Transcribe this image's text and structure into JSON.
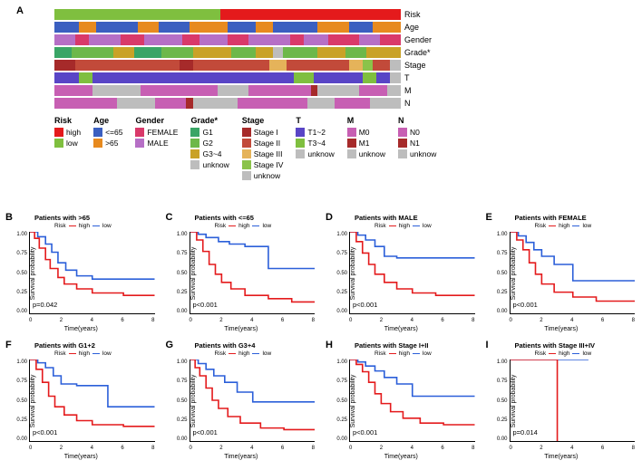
{
  "panelA": {
    "label": "A",
    "trackLabels": [
      "Risk",
      "Age",
      "Gender",
      "Grade*",
      "Stage",
      "T",
      "M",
      "N"
    ],
    "colors": {
      "risk_high": "#e41a1c",
      "risk_low": "#7fbf3f",
      "age_le65": "#3b5fc0",
      "age_gt65": "#e78a1f",
      "gender_f": "#d9396a",
      "gender_m": "#b66fc6",
      "g1": "#3aa566",
      "g2": "#6db84a",
      "g34": "#c9a227",
      "g_unk": "#bdbdbd",
      "stage1": "#a62a2a",
      "stage2": "#c24a3a",
      "stage3": "#e5b35a",
      "stage4": "#8bc34a",
      "stage_unk": "#bdbdbd",
      "t12": "#5945c6",
      "t34": "#7fbf3f",
      "t_unk": "#bdbdbd",
      "m0": "#c75fb3",
      "m1": "#a62a2a",
      "m_unk": "#bdbdbd",
      "n0": "#c75fb3",
      "n1": "#a62a2a",
      "n_unk": "#bdbdbd"
    },
    "legend": [
      {
        "title": "Risk",
        "items": [
          [
            "risk_high",
            "high"
          ],
          [
            "risk_low",
            "low"
          ]
        ]
      },
      {
        "title": "Age",
        "items": [
          [
            "age_le65",
            "<=65"
          ],
          [
            "age_gt65",
            ">65"
          ]
        ]
      },
      {
        "title": "Gender",
        "items": [
          [
            "gender_f",
            "FEMALE"
          ],
          [
            "gender_m",
            "MALE"
          ]
        ]
      },
      {
        "title": "Grade*",
        "items": [
          [
            "g1",
            "G1"
          ],
          [
            "g2",
            "G2"
          ],
          [
            "g34",
            "G3~4"
          ],
          [
            "g_unk",
            "unknow"
          ]
        ]
      },
      {
        "title": "Stage",
        "items": [
          [
            "stage1",
            "Stage I"
          ],
          [
            "stage2",
            "Stage II"
          ],
          [
            "stage3",
            "Stage III"
          ],
          [
            "stage4",
            "Stage IV"
          ],
          [
            "stage_unk",
            "unknow"
          ]
        ]
      },
      {
        "title": "T",
        "items": [
          [
            "t12",
            "T1~2"
          ],
          [
            "t34",
            "T3~4"
          ],
          [
            "t_unk",
            "unknow"
          ]
        ]
      },
      {
        "title": "M",
        "items": [
          [
            "m0",
            "M0"
          ],
          [
            "m1",
            "M1"
          ],
          [
            "m_unk",
            "unknow"
          ]
        ]
      },
      {
        "title": "N",
        "items": [
          [
            "n0",
            "N0"
          ],
          [
            "n1",
            "N1"
          ],
          [
            "n_unk",
            "unknow"
          ]
        ]
      }
    ],
    "tracks": {
      "Risk": [
        [
          "risk_low",
          0.48
        ],
        [
          "risk_high",
          0.52
        ]
      ],
      "Age": [
        [
          "age_le65",
          0.07
        ],
        [
          "age_gt65",
          0.05
        ],
        [
          "age_le65",
          0.12
        ],
        [
          "age_gt65",
          0.06
        ],
        [
          "age_le65",
          0.09
        ],
        [
          "age_gt65",
          0.11
        ],
        [
          "age_le65",
          0.08
        ],
        [
          "age_gt65",
          0.05
        ],
        [
          "age_le65",
          0.13
        ],
        [
          "age_gt65",
          0.09
        ],
        [
          "age_le65",
          0.07
        ],
        [
          "age_gt65",
          0.08
        ]
      ],
      "Gender": [
        [
          "gender_m",
          0.06
        ],
        [
          "gender_f",
          0.04
        ],
        [
          "gender_m",
          0.09
        ],
        [
          "gender_f",
          0.07
        ],
        [
          "gender_m",
          0.11
        ],
        [
          "gender_f",
          0.05
        ],
        [
          "gender_m",
          0.08
        ],
        [
          "gender_f",
          0.06
        ],
        [
          "gender_m",
          0.12
        ],
        [
          "gender_f",
          0.04
        ],
        [
          "gender_m",
          0.07
        ],
        [
          "gender_f",
          0.09
        ],
        [
          "gender_m",
          0.06
        ],
        [
          "gender_f",
          0.06
        ]
      ],
      "Grade*": [
        [
          "g1",
          0.05
        ],
        [
          "g2",
          0.12
        ],
        [
          "g34",
          0.06
        ],
        [
          "g1",
          0.08
        ],
        [
          "g2",
          0.09
        ],
        [
          "g34",
          0.11
        ],
        [
          "g2",
          0.07
        ],
        [
          "g34",
          0.05
        ],
        [
          "g_unk",
          0.03
        ],
        [
          "g2",
          0.1
        ],
        [
          "g34",
          0.08
        ],
        [
          "g2",
          0.06
        ],
        [
          "g34",
          0.1
        ]
      ],
      "Stage": [
        [
          "stage1",
          0.06
        ],
        [
          "stage2",
          0.3
        ],
        [
          "stage1",
          0.04
        ],
        [
          "stage2",
          0.22
        ],
        [
          "stage3",
          0.05
        ],
        [
          "stage2",
          0.18
        ],
        [
          "stage3",
          0.04
        ],
        [
          "stage4",
          0.03
        ],
        [
          "stage2",
          0.05
        ],
        [
          "stage_unk",
          0.03
        ]
      ],
      "T": [
        [
          "t12",
          0.07
        ],
        [
          "t34",
          0.04
        ],
        [
          "t12",
          0.58
        ],
        [
          "t34",
          0.06
        ],
        [
          "t12",
          0.14
        ],
        [
          "t34",
          0.04
        ],
        [
          "t12",
          0.04
        ],
        [
          "t_unk",
          0.03
        ]
      ],
      "M": [
        [
          "m0",
          0.11
        ],
        [
          "m_unk",
          0.14
        ],
        [
          "m0",
          0.22
        ],
        [
          "m_unk",
          0.09
        ],
        [
          "m0",
          0.18
        ],
        [
          "m1",
          0.02
        ],
        [
          "m_unk",
          0.12
        ],
        [
          "m0",
          0.08
        ],
        [
          "m_unk",
          0.04
        ]
      ],
      "N": [
        [
          "n0",
          0.18
        ],
        [
          "n_unk",
          0.11
        ],
        [
          "n0",
          0.09
        ],
        [
          "n1",
          0.02
        ],
        [
          "n_unk",
          0.13
        ],
        [
          "n0",
          0.2
        ],
        [
          "n_unk",
          0.08
        ],
        [
          "n0",
          0.1
        ],
        [
          "n_unk",
          0.09
        ]
      ]
    }
  },
  "km": {
    "ylabel": "Survival probability",
    "xlabel": "Time(years)",
    "legend_label": "Risk",
    "high_label": "high",
    "low_label": "low",
    "high_color": "#e41a1c",
    "low_color": "#2b5fd9",
    "x_ticks": [
      "0",
      "2",
      "4",
      "6",
      "8"
    ],
    "y_ticks": [
      "1.00",
      "0.75",
      "0.50",
      "0.25",
      "0.00"
    ],
    "panels": [
      {
        "id": "B",
        "title": "Patients with >65",
        "p": "p=0.042",
        "high": [
          [
            0,
            1
          ],
          [
            0.3,
            0.92
          ],
          [
            0.6,
            0.8
          ],
          [
            1.0,
            0.66
          ],
          [
            1.3,
            0.55
          ],
          [
            1.8,
            0.44
          ],
          [
            2.2,
            0.36
          ],
          [
            3.0,
            0.3
          ],
          [
            4.0,
            0.25
          ],
          [
            6.0,
            0.22
          ],
          [
            8,
            0.22
          ]
        ],
        "low": [
          [
            0,
            1
          ],
          [
            0.5,
            0.94
          ],
          [
            1.0,
            0.85
          ],
          [
            1.4,
            0.75
          ],
          [
            1.8,
            0.62
          ],
          [
            2.3,
            0.53
          ],
          [
            3.0,
            0.46
          ],
          [
            4.0,
            0.42
          ],
          [
            6.0,
            0.42
          ],
          [
            8,
            0.42
          ]
        ]
      },
      {
        "id": "C",
        "title": "Patients with <=65",
        "p": "p<0.001",
        "high": [
          [
            0,
            1
          ],
          [
            0.4,
            0.9
          ],
          [
            0.8,
            0.76
          ],
          [
            1.2,
            0.6
          ],
          [
            1.6,
            0.48
          ],
          [
            2.0,
            0.38
          ],
          [
            2.6,
            0.3
          ],
          [
            3.5,
            0.22
          ],
          [
            5.0,
            0.18
          ],
          [
            6.5,
            0.14
          ],
          [
            8,
            0.14
          ]
        ],
        "low": [
          [
            0,
            1
          ],
          [
            0.5,
            0.97
          ],
          [
            1.0,
            0.93
          ],
          [
            1.8,
            0.88
          ],
          [
            2.5,
            0.85
          ],
          [
            3.5,
            0.82
          ],
          [
            5.0,
            0.55
          ],
          [
            6.5,
            0.55
          ],
          [
            8,
            0.55
          ]
        ]
      },
      {
        "id": "D",
        "title": "Patients with MALE",
        "p": "p<0.001",
        "high": [
          [
            0,
            1
          ],
          [
            0.4,
            0.88
          ],
          [
            0.8,
            0.74
          ],
          [
            1.2,
            0.6
          ],
          [
            1.6,
            0.48
          ],
          [
            2.2,
            0.38
          ],
          [
            3.0,
            0.3
          ],
          [
            4.0,
            0.25
          ],
          [
            5.5,
            0.22
          ],
          [
            8,
            0.22
          ]
        ],
        "low": [
          [
            0,
            1
          ],
          [
            0.5,
            0.96
          ],
          [
            1.0,
            0.9
          ],
          [
            1.6,
            0.82
          ],
          [
            2.2,
            0.7
          ],
          [
            3.0,
            0.68
          ],
          [
            5.0,
            0.68
          ],
          [
            8,
            0.68
          ]
        ]
      },
      {
        "id": "E",
        "title": "Patients with FEMALE",
        "p": "p<0.001",
        "high": [
          [
            0,
            1
          ],
          [
            0.4,
            0.9
          ],
          [
            0.8,
            0.78
          ],
          [
            1.2,
            0.62
          ],
          [
            1.6,
            0.48
          ],
          [
            2.0,
            0.36
          ],
          [
            2.8,
            0.26
          ],
          [
            4.0,
            0.2
          ],
          [
            5.5,
            0.15
          ],
          [
            8,
            0.15
          ]
        ],
        "low": [
          [
            0,
            1
          ],
          [
            0.5,
            0.95
          ],
          [
            1.0,
            0.87
          ],
          [
            1.5,
            0.78
          ],
          [
            2.0,
            0.7
          ],
          [
            2.8,
            0.6
          ],
          [
            4.0,
            0.4
          ],
          [
            6.0,
            0.4
          ],
          [
            8,
            0.4
          ]
        ]
      },
      {
        "id": "F",
        "title": "Patients with G1+2",
        "p": "p<0.001",
        "high": [
          [
            0,
            1
          ],
          [
            0.4,
            0.88
          ],
          [
            0.8,
            0.72
          ],
          [
            1.2,
            0.55
          ],
          [
            1.6,
            0.42
          ],
          [
            2.2,
            0.32
          ],
          [
            3.0,
            0.25
          ],
          [
            4.0,
            0.2
          ],
          [
            6.0,
            0.18
          ],
          [
            8,
            0.18
          ]
        ],
        "low": [
          [
            0,
            1
          ],
          [
            0.5,
            0.96
          ],
          [
            1.0,
            0.9
          ],
          [
            1.5,
            0.8
          ],
          [
            2.0,
            0.7
          ],
          [
            3.0,
            0.68
          ],
          [
            5.0,
            0.42
          ],
          [
            6.0,
            0.42
          ],
          [
            8,
            0.42
          ]
        ]
      },
      {
        "id": "G",
        "title": "Patients with G3+4",
        "p": "p<0.001",
        "high": [
          [
            0,
            1
          ],
          [
            0.3,
            0.9
          ],
          [
            0.6,
            0.8
          ],
          [
            1.0,
            0.65
          ],
          [
            1.4,
            0.5
          ],
          [
            1.8,
            0.4
          ],
          [
            2.4,
            0.3
          ],
          [
            3.2,
            0.22
          ],
          [
            4.5,
            0.16
          ],
          [
            6.0,
            0.14
          ],
          [
            8,
            0.14
          ]
        ],
        "low": [
          [
            0,
            1
          ],
          [
            0.5,
            0.95
          ],
          [
            1.0,
            0.88
          ],
          [
            1.5,
            0.8
          ],
          [
            2.2,
            0.72
          ],
          [
            3.0,
            0.6
          ],
          [
            4.0,
            0.48
          ],
          [
            6.0,
            0.48
          ],
          [
            8,
            0.48
          ]
        ]
      },
      {
        "id": "H",
        "title": "Patients with Stage I+II",
        "p": "p<0.001",
        "high": [
          [
            0,
            1
          ],
          [
            0.4,
            0.94
          ],
          [
            0.8,
            0.85
          ],
          [
            1.2,
            0.72
          ],
          [
            1.6,
            0.58
          ],
          [
            2.0,
            0.46
          ],
          [
            2.6,
            0.36
          ],
          [
            3.4,
            0.28
          ],
          [
            4.5,
            0.22
          ],
          [
            6.0,
            0.2
          ],
          [
            8,
            0.2
          ]
        ],
        "low": [
          [
            0,
            1
          ],
          [
            0.5,
            0.97
          ],
          [
            1.0,
            0.92
          ],
          [
            1.6,
            0.86
          ],
          [
            2.2,
            0.78
          ],
          [
            3.0,
            0.7
          ],
          [
            4.0,
            0.55
          ],
          [
            6.0,
            0.55
          ],
          [
            8,
            0.55
          ]
        ]
      },
      {
        "id": "I",
        "title": "Patients with Stage III+IV",
        "p": "p=0.014",
        "high": [
          [
            0,
            1
          ],
          [
            3.0,
            1
          ],
          [
            3.0,
            0
          ]
        ],
        "low": [
          [
            0,
            1
          ],
          [
            2.8,
            1
          ],
          [
            2.8,
            1
          ],
          [
            5,
            1
          ]
        ]
      }
    ]
  }
}
